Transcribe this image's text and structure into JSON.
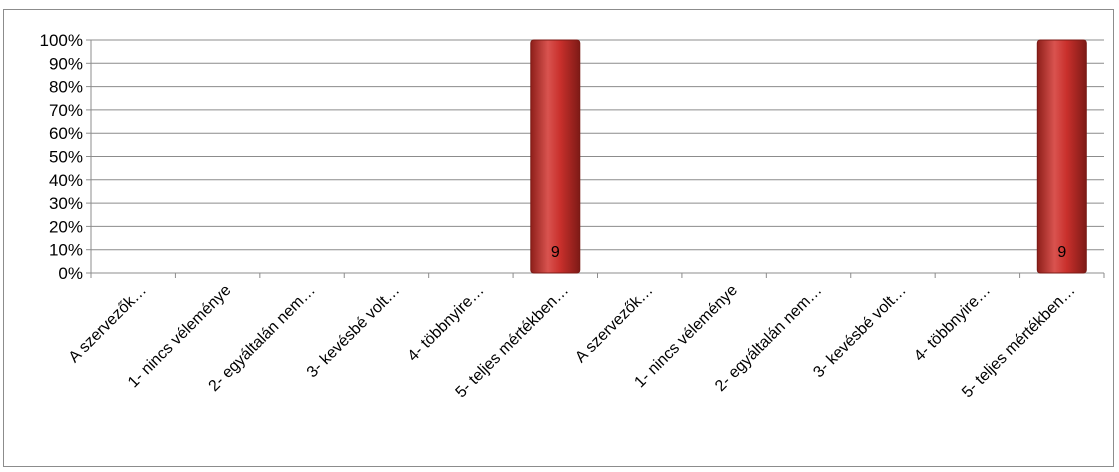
{
  "chart_data": {
    "type": "bar",
    "categories": [
      "A szervezők…",
      "1- nincs véleménye",
      "2- egyáltalán nem…",
      "3- kevésbé volt…",
      "4- többnyire…",
      "5- teljes mértékben…",
      "A szervezők…",
      "1- nincs véleménye",
      "2- egyáltalán nem…",
      "3- kevésbé volt…",
      "4- többnyire…",
      "5- teljes mértékben…"
    ],
    "values": [
      0,
      0,
      0,
      0,
      0,
      1,
      0,
      0,
      0,
      0,
      0,
      1
    ],
    "data_labels": [
      "",
      "",
      "",
      "",
      "",
      "9",
      "",
      "",
      "",
      "",
      "",
      "9"
    ],
    "yticks": [
      "0%",
      "10%",
      "20%",
      "30%",
      "40%",
      "50%",
      "60%",
      "70%",
      "80%",
      "90%",
      "100%"
    ],
    "ylim": [
      0,
      1
    ],
    "grid": true,
    "bar_color": "#c0392b",
    "title": "",
    "xlabel": "",
    "ylabel": ""
  }
}
